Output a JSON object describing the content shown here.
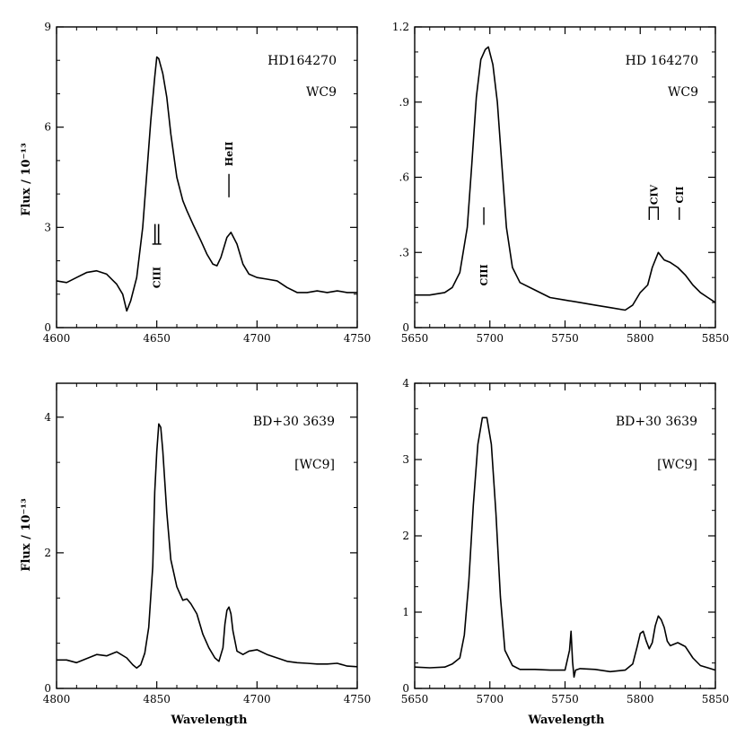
{
  "figure": {
    "ylabel_top": "Flux / 10⁻¹³",
    "ylabel_bottom": "Flux / 10⁻¹³",
    "xlabel_left": "Wavelength",
    "xlabel_right": "Wavelength"
  },
  "chart_data": [
    {
      "type": "line",
      "name": "HD164270 4600-4750",
      "xlim": [
        4600,
        4750
      ],
      "ylim": [
        0,
        9
      ],
      "xticks": [
        4600,
        4650,
        4700,
        4750
      ],
      "xtick_labels": [
        "4600",
        "4650",
        "4700",
        "4750"
      ],
      "yticks": [
        0,
        3,
        6,
        9
      ],
      "ytick_labels": [
        "0",
        "3",
        "6",
        "9"
      ],
      "ylabel": "Flux / 10⁻¹³",
      "xlabel": "",
      "annotations": [
        "HD164270",
        "WC9"
      ],
      "line_ids": [
        {
          "label": "CIII",
          "x": 4650,
          "mark_y": [
            2.5,
            3.1
          ],
          "text_y": 1.5,
          "style": "double"
        },
        {
          "label": "HeII",
          "x": 4686,
          "mark_y": [
            3.9,
            4.6
          ],
          "text_y": 5.2,
          "style": "single"
        }
      ],
      "series": [
        {
          "name": "spectrum",
          "x": [
            4600,
            4605,
            4610,
            4615,
            4620,
            4625,
            4630,
            4633,
            4635,
            4637,
            4640,
            4643,
            4645,
            4647,
            4649,
            4650,
            4651,
            4653,
            4655,
            4657,
            4660,
            4663,
            4665,
            4668,
            4672,
            4675,
            4678,
            4680,
            4682,
            4685,
            4687,
            4690,
            4693,
            4696,
            4700,
            4705,
            4710,
            4715,
            4720,
            4725,
            4730,
            4735,
            4740,
            4745,
            4750
          ],
          "y": [
            1.4,
            1.35,
            1.5,
            1.65,
            1.7,
            1.6,
            1.3,
            1.0,
            0.5,
            0.8,
            1.5,
            3.0,
            4.6,
            6.2,
            7.5,
            8.1,
            8.05,
            7.6,
            6.9,
            5.8,
            4.5,
            3.8,
            3.5,
            3.1,
            2.6,
            2.2,
            1.9,
            1.85,
            2.1,
            2.7,
            2.85,
            2.5,
            1.9,
            1.6,
            1.5,
            1.45,
            1.4,
            1.2,
            1.05,
            1.05,
            1.1,
            1.05,
            1.1,
            1.05,
            1.05
          ]
        }
      ]
    },
    {
      "type": "line",
      "name": "HD 164270 5650-5850",
      "xlim": [
        5650,
        5850
      ],
      "ylim": [
        0,
        1.2
      ],
      "xticks": [
        5650,
        5700,
        5750,
        5800,
        5850
      ],
      "xtick_labels": [
        "5650",
        "5700",
        "5750",
        "5800",
        "5850"
      ],
      "yticks": [
        0,
        0.3,
        0.6,
        0.9,
        1.2
      ],
      "ytick_labels": [
        "0",
        ".3",
        ".6",
        ".9",
        "1.2"
      ],
      "ylabel": "",
      "xlabel": "",
      "annotations": [
        "HD 164270",
        "WC9"
      ],
      "line_ids": [
        {
          "label": "CIII",
          "x": 5696,
          "mark_y": [
            0.41,
            0.48
          ],
          "text_y": 0.21,
          "style": "single"
        },
        {
          "label": "CIV",
          "x": 5806,
          "mark_y": [
            0.43,
            0.48
          ],
          "text_y": 0.53,
          "style": "bracket",
          "x2": 5812
        },
        {
          "label": "CII",
          "x": 5826,
          "mark_y": [
            0.43,
            0.48
          ],
          "text_y": 0.53,
          "style": "single"
        }
      ],
      "series": [
        {
          "name": "spectrum",
          "x": [
            5650,
            5660,
            5670,
            5675,
            5680,
            5685,
            5688,
            5691,
            5694,
            5697,
            5699,
            5702,
            5705,
            5708,
            5711,
            5715,
            5720,
            5730,
            5740,
            5750,
            5760,
            5770,
            5780,
            5790,
            5795,
            5800,
            5805,
            5808,
            5812,
            5816,
            5820,
            5825,
            5830,
            5835,
            5840,
            5845,
            5850
          ],
          "y": [
            0.13,
            0.13,
            0.14,
            0.16,
            0.22,
            0.4,
            0.65,
            0.92,
            1.07,
            1.11,
            1.12,
            1.05,
            0.9,
            0.65,
            0.4,
            0.24,
            0.18,
            0.15,
            0.12,
            0.11,
            0.1,
            0.09,
            0.08,
            0.07,
            0.09,
            0.14,
            0.17,
            0.24,
            0.3,
            0.27,
            0.26,
            0.24,
            0.21,
            0.17,
            0.14,
            0.12,
            0.1
          ]
        }
      ]
    },
    {
      "type": "line",
      "name": "BD+30 3639 4800-4750",
      "xlim": [
        4800,
        4750
      ],
      "ylim": [
        0,
        4.5
      ],
      "xticks": [
        4800,
        4850,
        4700,
        4750
      ],
      "xtick_labels": [
        "4800",
        "4850",
        "4700",
        "4750"
      ],
      "yticks": [
        0,
        2,
        4
      ],
      "ytick_labels": [
        "0",
        "2",
        "4"
      ],
      "ylabel": "Flux / 10⁻¹³",
      "xlabel": "Wavelength",
      "annotations": [
        "BD+30 3639",
        "[WC9]"
      ],
      "line_ids": [],
      "series": [
        {
          "name": "spectrum",
          "x": [
            0,
            5,
            10,
            15,
            20,
            25,
            30,
            35,
            38,
            40,
            42,
            44,
            46,
            48,
            49,
            50,
            51,
            52,
            53,
            55,
            57,
            60,
            63,
            65,
            67,
            70,
            73,
            76,
            79,
            81,
            83,
            84,
            85,
            86,
            87,
            88,
            90,
            93,
            96,
            100,
            105,
            110,
            115,
            120,
            125,
            130,
            135,
            140,
            145,
            150
          ],
          "y": [
            0.42,
            0.42,
            0.38,
            0.44,
            0.5,
            0.48,
            0.54,
            0.45,
            0.35,
            0.3,
            0.35,
            0.52,
            0.9,
            1.8,
            2.9,
            3.5,
            3.9,
            3.85,
            3.5,
            2.6,
            1.9,
            1.5,
            1.3,
            1.32,
            1.25,
            1.1,
            0.8,
            0.6,
            0.45,
            0.4,
            0.6,
            0.95,
            1.15,
            1.2,
            1.1,
            0.85,
            0.55,
            0.5,
            0.55,
            0.57,
            0.5,
            0.45,
            0.4,
            0.38,
            0.37,
            0.36,
            0.36,
            0.37,
            0.33,
            0.32
          ]
        }
      ]
    },
    {
      "type": "line",
      "name": "BD+30 3639 5650-5850",
      "xlim": [
        5650,
        5850
      ],
      "ylim": [
        0,
        4
      ],
      "xticks": [
        5650,
        5700,
        5750,
        5800,
        5850
      ],
      "xtick_labels": [
        "5650",
        "5700",
        "5750",
        "5800",
        "5850"
      ],
      "yticks": [
        0,
        1,
        2,
        3,
        4
      ],
      "ytick_labels": [
        "0",
        "1",
        "2",
        "3",
        "4"
      ],
      "ylabel": "",
      "xlabel": "Wavelength",
      "annotations": [
        "BD+30 3639",
        "[WC9]"
      ],
      "line_ids": [],
      "series": [
        {
          "name": "spectrum",
          "x": [
            5650,
            5660,
            5670,
            5675,
            5680,
            5683,
            5686,
            5689,
            5692,
            5695,
            5698,
            5701,
            5704,
            5707,
            5710,
            5715,
            5720,
            5730,
            5740,
            5750,
            5753,
            5754,
            5755,
            5756,
            5757,
            5760,
            5770,
            5780,
            5790,
            5795,
            5798,
            5800,
            5802,
            5804,
            5806,
            5808,
            5810,
            5812,
            5814,
            5816,
            5818,
            5820,
            5825,
            5830,
            5835,
            5840,
            5845,
            5850
          ],
          "y": [
            0.28,
            0.27,
            0.28,
            0.32,
            0.4,
            0.7,
            1.4,
            2.4,
            3.2,
            3.55,
            3.55,
            3.2,
            2.3,
            1.2,
            0.5,
            0.3,
            0.25,
            0.25,
            0.24,
            0.24,
            0.5,
            0.75,
            0.35,
            0.15,
            0.24,
            0.26,
            0.25,
            0.22,
            0.24,
            0.32,
            0.55,
            0.72,
            0.75,
            0.62,
            0.52,
            0.6,
            0.82,
            0.95,
            0.9,
            0.8,
            0.62,
            0.56,
            0.6,
            0.55,
            0.4,
            0.3,
            0.27,
            0.24
          ]
        }
      ]
    }
  ]
}
